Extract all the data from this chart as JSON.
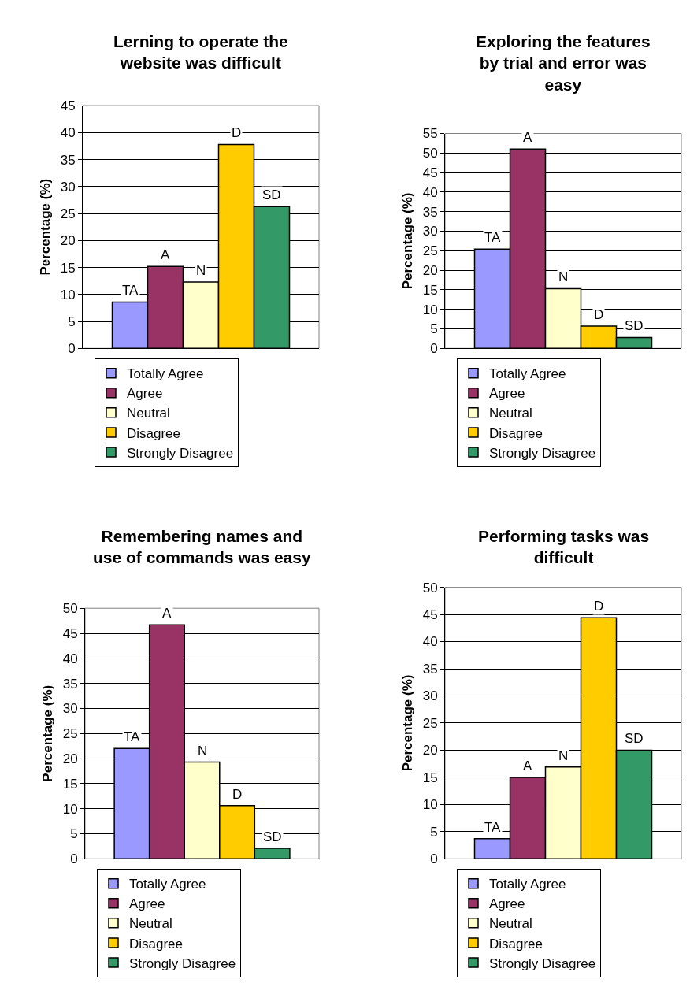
{
  "chart_data": [
    {
      "type": "bar",
      "title": "Lerning to operate the website was difficult",
      "ylabel": "Percentage (%)",
      "categories": [
        null
      ],
      "ylim": [
        0,
        45
      ],
      "yticks": [
        0,
        5,
        10,
        15,
        20,
        25,
        30,
        35,
        40,
        45
      ],
      "grid": "y",
      "legend": "bottom",
      "series": [
        {
          "name": "Totally Agree",
          "color": "#9999ff",
          "values": [
            8.6
          ],
          "value_labels": [
            "TA"
          ]
        },
        {
          "name": "Agree",
          "color": "#993366",
          "values": [
            15.2
          ],
          "value_labels": [
            "A"
          ]
        },
        {
          "name": "Neutral",
          "color": "#ffffcc",
          "values": [
            12.3
          ],
          "value_labels": [
            "N"
          ]
        },
        {
          "name": "Disagree",
          "color": "#ffcc00",
          "values": [
            37.8
          ],
          "value_labels": [
            "D"
          ]
        },
        {
          "name": "Strongly Disagree",
          "color": "#339966",
          "values": [
            26.3
          ],
          "value_labels": [
            "SD"
          ]
        }
      ]
    },
    {
      "type": "bar",
      "title": "Exploring the features by trial and error was easy",
      "ylabel": "Percentage (%)",
      "categories": [
        null
      ],
      "ylim": [
        0,
        55
      ],
      "yticks": [
        0,
        5,
        10,
        15,
        20,
        25,
        30,
        35,
        40,
        45,
        50,
        55
      ],
      "grid": "y",
      "legend": "bottom",
      "series": [
        {
          "name": "Totally Agree",
          "color": "#9999ff",
          "values": [
            25.4
          ],
          "value_labels": [
            "TA"
          ]
        },
        {
          "name": "Agree",
          "color": "#993366",
          "values": [
            51
          ],
          "value_labels": [
            "A"
          ]
        },
        {
          "name": "Neutral",
          "color": "#ffffcc",
          "values": [
            15.3
          ],
          "value_labels": [
            "N"
          ]
        },
        {
          "name": "Disagree",
          "color": "#ffcc00",
          "values": [
            5.7
          ],
          "value_labels": [
            "D"
          ]
        },
        {
          "name": "Strongly Disagree",
          "color": "#339966",
          "values": [
            2.8
          ],
          "value_labels": [
            "SD"
          ]
        }
      ]
    },
    {
      "type": "bar",
      "title": "Remembering names and use of commands was easy",
      "ylabel": "Percentage (%)",
      "categories": [
        null
      ],
      "ylim": [
        0,
        50
      ],
      "yticks": [
        0,
        5,
        10,
        15,
        20,
        25,
        30,
        35,
        40,
        45,
        50
      ],
      "grid": "y",
      "legend": "bottom",
      "series": [
        {
          "name": "Totally Agree",
          "color": "#9999ff",
          "values": [
            22
          ],
          "value_labels": [
            "TA"
          ]
        },
        {
          "name": "Agree",
          "color": "#993366",
          "values": [
            46.7
          ],
          "value_labels": [
            "A"
          ]
        },
        {
          "name": "Neutral",
          "color": "#ffffcc",
          "values": [
            19.3
          ],
          "value_labels": [
            "N"
          ]
        },
        {
          "name": "Disagree",
          "color": "#ffcc00",
          "values": [
            10.6
          ],
          "value_labels": [
            "D"
          ]
        },
        {
          "name": "Strongly Disagree",
          "color": "#339966",
          "values": [
            2.1
          ],
          "value_labels": [
            "SD"
          ]
        }
      ]
    },
    {
      "type": "bar",
      "title": "Performing tasks was difficult",
      "ylabel": "Percentage (%)",
      "categories": [
        null
      ],
      "ylim": [
        0,
        50
      ],
      "yticks": [
        0,
        5,
        10,
        15,
        20,
        25,
        30,
        35,
        40,
        45,
        50
      ],
      "grid": "y",
      "legend": "bottom",
      "series": [
        {
          "name": "Totally Agree",
          "color": "#9999ff",
          "values": [
            3.7
          ],
          "value_labels": [
            "TA"
          ]
        },
        {
          "name": "Agree",
          "color": "#993366",
          "values": [
            15
          ],
          "value_labels": [
            "A"
          ]
        },
        {
          "name": "Neutral",
          "color": "#ffffcc",
          "values": [
            16.9
          ],
          "value_labels": [
            "N"
          ]
        },
        {
          "name": "Disagree",
          "color": "#ffcc00",
          "values": [
            44.4
          ],
          "value_labels": [
            "D"
          ]
        },
        {
          "name": "Strongly Disagree",
          "color": "#339966",
          "values": [
            20
          ],
          "value_labels": [
            "SD"
          ]
        }
      ]
    }
  ]
}
